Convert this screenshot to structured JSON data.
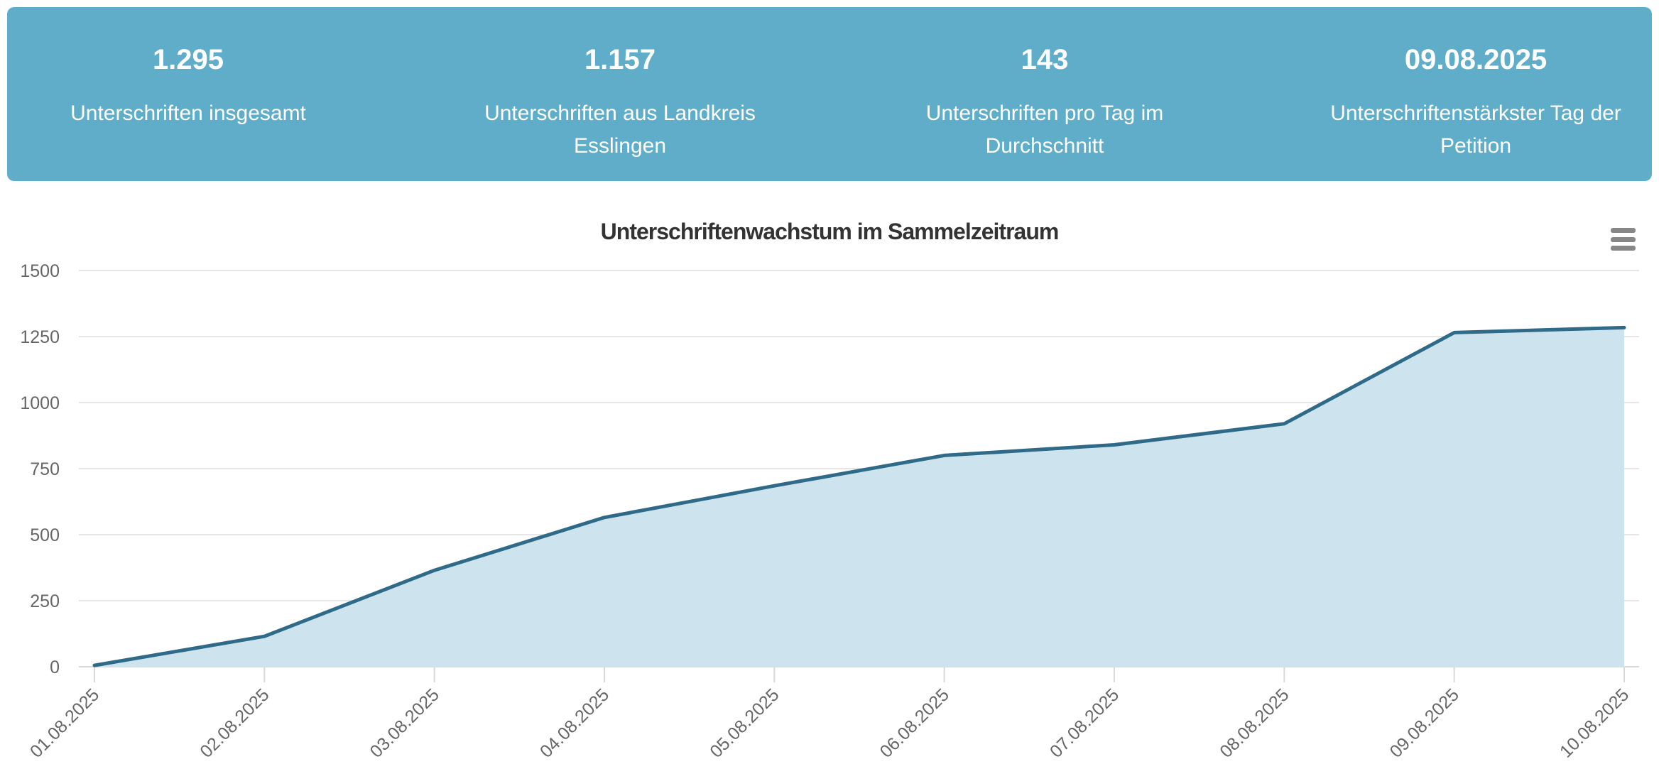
{
  "stats": [
    {
      "value": "1.295",
      "label": "Unterschriften insgesamt"
    },
    {
      "value": "1.157",
      "label": "Unterschriften aus Landkreis Esslingen"
    },
    {
      "value": "143",
      "label": "Unterschriften pro Tag im Durchschnitt"
    },
    {
      "value": "09.08.2025",
      "label": "Unterschriftenstärkster Tag der Petition"
    }
  ],
  "chart_data": {
    "type": "area",
    "title": "Unterschriftenwachstum im Sammelzeitraum",
    "categories": [
      "01.08.2025",
      "02.08.2025",
      "03.08.2025",
      "04.08.2025",
      "05.08.2025",
      "06.08.2025",
      "07.08.2025",
      "08.08.2025",
      "09.08.2025",
      "10.08.2025"
    ],
    "values": [
      5,
      115,
      365,
      565,
      685,
      800,
      840,
      920,
      1265,
      1284
    ],
    "xlabel": "",
    "ylabel": "",
    "ylim": [
      0,
      1500
    ],
    "tick_interval": 250,
    "grid": true,
    "legend": false
  },
  "colors": {
    "banner": "#5fadc9",
    "line": "#2f6b88",
    "fill": "#cde3ee",
    "grid": "#e6e6e6",
    "axis": "#d9d9d9",
    "label": "#666666",
    "title": "#333333"
  },
  "menu_icon": "hamburger-menu"
}
